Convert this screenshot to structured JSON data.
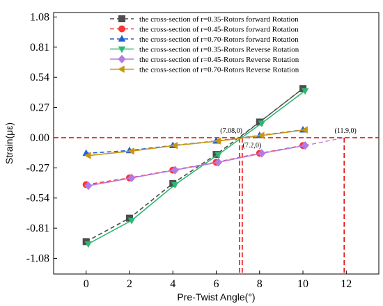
{
  "chart_data": {
    "type": "line",
    "xlabel": "Pre-Twist Angle(°)",
    "ylabel": "Strain(με)",
    "xlim": [
      -1.5,
      13.5
    ],
    "ylim": [
      -1.22,
      1.12
    ],
    "x_ticks": [
      "0",
      "2",
      "4",
      "6",
      "8",
      "10",
      "12"
    ],
    "y_ticks": [
      "1.08",
      "0.81",
      "0.54",
      "0.27",
      "0.00",
      "-0.27",
      "-0.54",
      "-0.81",
      "-1.08"
    ],
    "grid": false,
    "legend_position": "top-right",
    "series": [
      {
        "name": "the cross-section of r=0.35-Rotors forward Rotation",
        "color": "#4d4d4d",
        "marker": "square",
        "dash": true,
        "x": [
          0,
          2,
          4,
          6,
          8,
          10
        ],
        "y": [
          -0.93,
          -0.72,
          -0.41,
          -0.15,
          0.14,
          0.44
        ]
      },
      {
        "name": "the cross-section of r=0.45-Rotors forward Rotation",
        "color": "#ff3333",
        "marker": "circle",
        "dash": true,
        "x": [
          0,
          2,
          4,
          6,
          8,
          10
        ],
        "y": [
          -0.42,
          -0.36,
          -0.29,
          -0.22,
          -0.14,
          -0.07
        ]
      },
      {
        "name": "the cross-section of r=0.70-Rotors forward Rotation",
        "color": "#1f5fd6",
        "marker": "triangle-up",
        "dash": true,
        "x": [
          0,
          2,
          4,
          6,
          8,
          10
        ],
        "y": [
          -0.14,
          -0.115,
          -0.07,
          -0.03,
          0.02,
          0.07
        ]
      },
      {
        "name": "the cross-section of r=0.35-Rotors Reverse Rotation",
        "color": "#2eb872",
        "marker": "triangle-down",
        "dash": false,
        "x": [
          0.1,
          2.1,
          4.1,
          6.1,
          8.1,
          10.1
        ],
        "y": [
          -0.95,
          -0.74,
          -0.42,
          -0.15,
          0.13,
          0.42
        ]
      },
      {
        "name": "the cross-section of r=0.45-Rotors Reverse Rotation",
        "color": "#b37be6",
        "marker": "diamond",
        "dash": false,
        "x": [
          0.1,
          2.1,
          4.1,
          6.1,
          8.1,
          10.1
        ],
        "y": [
          -0.43,
          -0.36,
          -0.29,
          -0.22,
          -0.14,
          -0.07
        ]
      },
      {
        "name": "the cross-section of r=0.70-Rotors Reverse Rotation",
        "color": "#c89611",
        "marker": "triangle-left",
        "dash": false,
        "x": [
          0.1,
          2.1,
          4.1,
          6.1,
          8.1,
          10.1
        ],
        "y": [
          -0.16,
          -0.12,
          -0.07,
          -0.03,
          0.02,
          0.07
        ]
      }
    ],
    "zero_line": {
      "y": 0,
      "color": "#e00000"
    },
    "annotations": [
      {
        "text": "(7.08,0)",
        "x": 7.08,
        "y": 0
      },
      {
        "text": "(7.2,0)",
        "x": 7.2,
        "y": 0
      },
      {
        "text": "(11.9,0)",
        "x": 11.9,
        "y": 0
      }
    ],
    "extrapolations": [
      {
        "series_color": "#4d4d4d",
        "from": [
          10,
          0.44
        ],
        "to": [
          7.08,
          0
        ]
      },
      {
        "series_color": "#b37be6",
        "from": [
          10.1,
          -0.07
        ],
        "to": [
          11.9,
          0
        ]
      }
    ]
  }
}
